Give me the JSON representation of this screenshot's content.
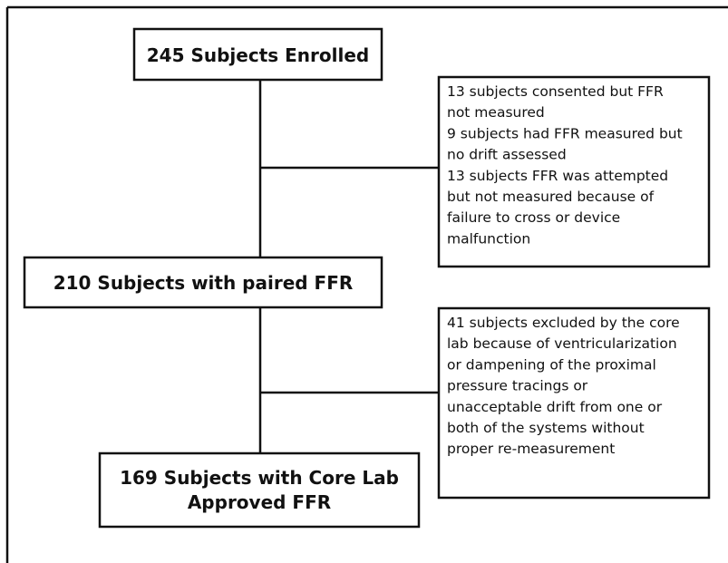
{
  "nodes": [
    {
      "lines": [
        "245 Subjects Enrolled"
      ]
    },
    {
      "lines": [
        "210 Subjects with paired FFR"
      ]
    },
    {
      "lines": [
        "169  Subjects with Core Lab",
        "Approved FFR"
      ]
    }
  ],
  "notes": [
    {
      "lines": [
        "13 subjects consented but FFR",
        "not measured",
        "9 subjects had FFR measured but",
        "no drift assessed",
        "13 subjects FFR was attempted",
        "but not measured because of",
        "failure to cross or device",
        "malfunction"
      ]
    },
    {
      "lines": [
        "41 subjects excluded by the core",
        "lab because of ventricularization",
        "or dampening of the proximal",
        "pressure tracings or",
        "unacceptable drift from one or",
        "both of the systems without",
        "proper re-measurement"
      ]
    }
  ]
}
